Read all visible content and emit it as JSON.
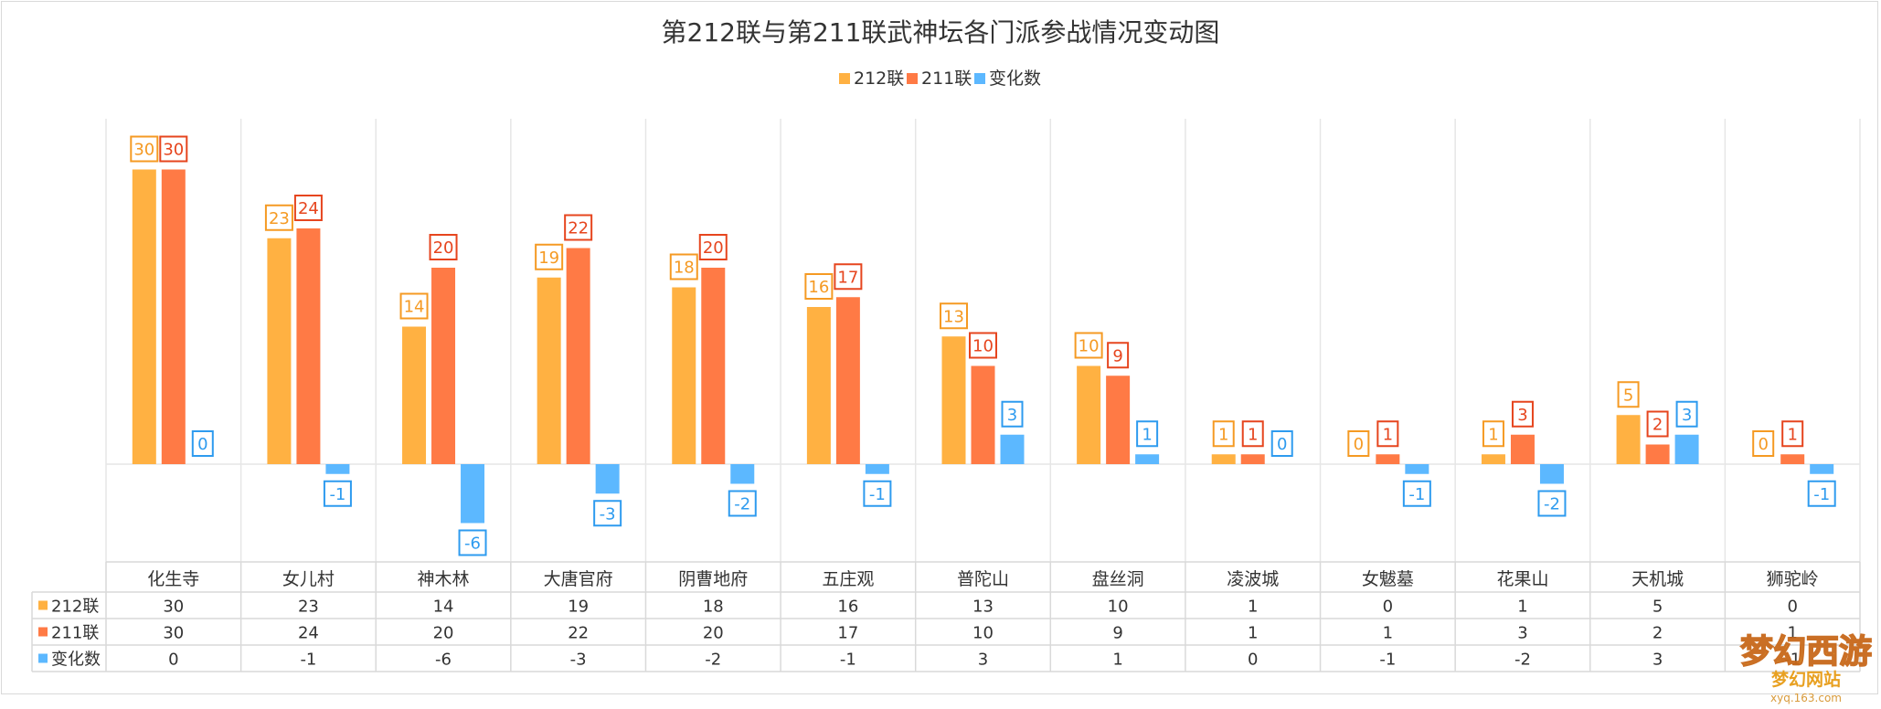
{
  "chart_data": {
    "type": "bar",
    "title": "第212联与第211联武神坛各门派参战情况变动图",
    "categories": [
      "化生寺",
      "女儿村",
      "神木林",
      "大唐官府",
      "阴曹地府",
      "五庄观",
      "普陀山",
      "盘丝洞",
      "凌波城",
      "女魃墓",
      "花果山",
      "天机城",
      "狮驼岭"
    ],
    "series": [
      {
        "name": "212联",
        "values": [
          30,
          23,
          14,
          19,
          18,
          16,
          13,
          10,
          1,
          0,
          1,
          5,
          0
        ]
      },
      {
        "name": "211联",
        "values": [
          30,
          24,
          20,
          22,
          20,
          17,
          10,
          9,
          1,
          1,
          3,
          2,
          1
        ]
      },
      {
        "name": "变化数",
        "values": [
          0,
          -1,
          -6,
          -3,
          -2,
          -1,
          3,
          1,
          0,
          -1,
          -2,
          3,
          -1
        ]
      }
    ],
    "ylim": [
      -10,
      36
    ],
    "grid": true,
    "legend_position": "top-center",
    "data_table": true,
    "colors": {
      "s212": "#FFB142",
      "s211": "#FF7A45",
      "change": "#5CB8FF",
      "label212": "#F59A23",
      "label211": "#E6451E",
      "labelChange": "#2E9BEF"
    }
  },
  "watermark": {
    "logo": "梦幻西游",
    "sub": "梦幻网站",
    "url": "xyq.163.com"
  }
}
